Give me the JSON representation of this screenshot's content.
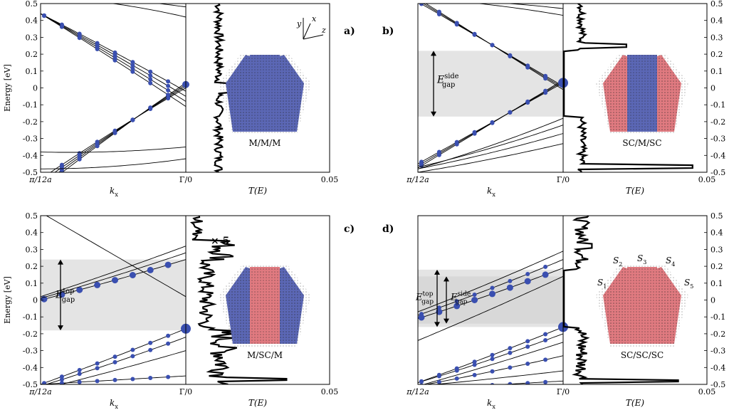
{
  "figure": {
    "panels": [
      {
        "letter": "a)",
        "label": "M/M/M",
        "center": "blue",
        "sides": "blue",
        "shade": null,
        "tscale": ""
      },
      {
        "letter": "b)",
        "label": "SC/M/SC",
        "center": "blue",
        "sides": "red",
        "shade": "side",
        "tscale": ""
      },
      {
        "letter": "c)",
        "label": "M/SC/M",
        "center": "red",
        "sides": "blue",
        "shade": "top",
        "tscale": "× 5"
      },
      {
        "letter": "d)",
        "label": "SC/SC/SC",
        "center": "red",
        "sides": "red",
        "shade": "both",
        "tscale": ""
      }
    ],
    "axis": {
      "ylabel": "Energy [eV]",
      "k_left": "π/12a",
      "k_right": "Γ/0",
      "k_label": "k",
      "k_sub": "x",
      "t_label": "T(E)",
      "t_max": "0.05",
      "yticks": [
        "0.5",
        "0.4",
        "0.3",
        "0.2",
        "0.1",
        "0",
        "-0.1",
        "-0.2",
        "-0.3",
        "-0.4",
        "-0.5"
      ]
    },
    "gap": {
      "main": "E",
      "sub": "gap",
      "top": "top",
      "side": "side"
    },
    "facets": [
      "S1",
      "S2",
      "S3",
      "S4",
      "S5"
    ],
    "coords": {
      "x": "x",
      "y": "y",
      "z": "z"
    },
    "colors": {
      "metal": "#5b67b5",
      "semiconductor": "#e07a80",
      "points": "#3a4fb0",
      "shade": "#e4e4e4"
    }
  },
  "chart_data": [
    {
      "type": "line",
      "panel": "a",
      "xlabel": "kx",
      "ylabel": "Energy [eV]",
      "ylim": [
        -0.5,
        0.5
      ],
      "tlim": [
        0,
        0.05
      ],
      "gap": [],
      "gap_minor": []
    },
    {
      "type": "line",
      "panel": "b",
      "xlabel": "kx",
      "ylabel": "Energy [eV]",
      "ylim": [
        -0.5,
        0.5
      ],
      "tlim": [
        0,
        0.05
      ],
      "gap": [
        -0.17,
        0.22
      ],
      "gap_minor": []
    },
    {
      "type": "line",
      "panel": "c",
      "xlabel": "kx",
      "ylabel": "Energy [eV]",
      "ylim": [
        -0.5,
        0.5
      ],
      "tlim": [
        0,
        0.05
      ],
      "gap": [
        -0.18,
        0.24
      ],
      "gap_minor": []
    },
    {
      "type": "line",
      "panel": "d",
      "xlabel": "kx",
      "ylabel": "Energy [eV]",
      "ylim": [
        -0.5,
        0.5
      ],
      "tlim": [
        0,
        0.05
      ],
      "gap": [
        -0.16,
        0.18
      ],
      "gap_minor": [
        -0.14,
        0.14
      ]
    }
  ]
}
